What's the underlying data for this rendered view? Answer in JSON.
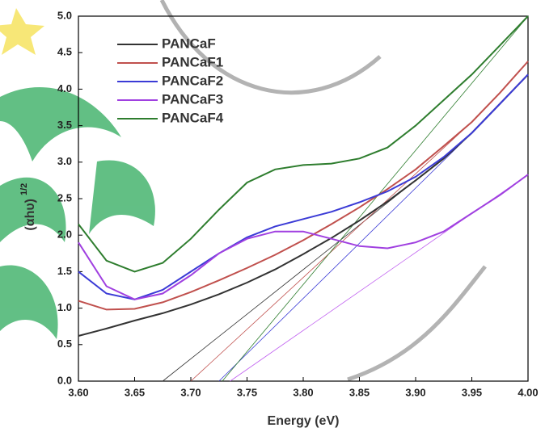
{
  "chart_data": {
    "type": "line",
    "xlabel": "Energy (eV)",
    "ylabel": "(αhυ)",
    "ylabel_sup": "1/2",
    "x": [
      3.6,
      3.625,
      3.65,
      3.675,
      3.7,
      3.725,
      3.75,
      3.775,
      3.8,
      3.825,
      3.85,
      3.875,
      3.9,
      3.925,
      3.95,
      3.975,
      4.0
    ],
    "series": [
      {
        "name": "PANCaF",
        "color": "#333333",
        "values": [
          0.62,
          0.72,
          0.83,
          0.93,
          1.05,
          1.19,
          1.35,
          1.53,
          1.74,
          1.96,
          2.2,
          2.46,
          2.75,
          3.05,
          3.4,
          3.8,
          4.2
        ]
      },
      {
        "name": "PANCaF1",
        "color": "#c0504d",
        "values": [
          1.1,
          0.98,
          0.99,
          1.08,
          1.22,
          1.38,
          1.55,
          1.73,
          1.93,
          2.15,
          2.38,
          2.63,
          2.9,
          3.22,
          3.55,
          3.95,
          4.38
        ]
      },
      {
        "name": "PANCaF2",
        "color": "#3b3bd6",
        "values": [
          1.5,
          1.2,
          1.12,
          1.25,
          1.5,
          1.75,
          1.97,
          2.12,
          2.22,
          2.32,
          2.45,
          2.6,
          2.8,
          3.07,
          3.4,
          3.8,
          4.2
        ]
      },
      {
        "name": "PANCaF3",
        "color": "#a040e0",
        "values": [
          1.9,
          1.3,
          1.12,
          1.2,
          1.45,
          1.75,
          1.95,
          2.05,
          2.05,
          1.95,
          1.85,
          1.82,
          1.9,
          2.05,
          2.3,
          2.55,
          2.83
        ]
      },
      {
        "name": "PANCaF4",
        "color": "#2e7d2e",
        "values": [
          2.15,
          1.65,
          1.5,
          1.62,
          1.95,
          2.35,
          2.72,
          2.9,
          2.96,
          2.98,
          3.05,
          3.2,
          3.5,
          3.85,
          4.2,
          4.6,
          5.0
        ]
      }
    ],
    "tangents": [
      {
        "color": "#333333",
        "x": [
          3.675,
          3.9
        ],
        "values": [
          0,
          2.75
        ]
      },
      {
        "color": "#c0504d",
        "x": [
          3.7,
          3.95
        ],
        "values": [
          0,
          3.55
        ]
      },
      {
        "color": "#3b3bd6",
        "x": [
          3.725,
          3.95
        ],
        "values": [
          0,
          3.4
        ]
      },
      {
        "color": "#c060f0",
        "x": [
          3.735,
          4.0
        ],
        "values": [
          0,
          2.83
        ]
      },
      {
        "color": "#2e7d2e",
        "x": [
          3.728,
          4.0
        ],
        "values": [
          0,
          5.0
        ]
      }
    ],
    "xlim": [
      3.6,
      4.0
    ],
    "ylim": [
      0,
      5.0
    ],
    "xticks": [
      {
        "value": 3.6,
        "label": "3.60"
      },
      3.65,
      {
        "value": 3.7,
        "label": "3.70"
      },
      3.75,
      {
        "value": 3.8,
        "label": "3.80"
      },
      3.85,
      {
        "value": 3.9,
        "label": "3.90"
      },
      3.95,
      {
        "value": 4.0,
        "label": "4.00"
      }
    ],
    "yticks": [
      {
        "value": 0,
        "label": "0.0"
      },
      0.5,
      {
        "value": 1,
        "label": "1.0"
      },
      1.5,
      {
        "value": 2,
        "label": "2.0"
      },
      2.5,
      {
        "value": 3,
        "label": "3.0"
      },
      3.5,
      {
        "value": 4,
        "label": "4.0"
      },
      4.5,
      {
        "value": 5,
        "label": "5.0"
      }
    ],
    "legend": "upper-left",
    "grid": false
  }
}
